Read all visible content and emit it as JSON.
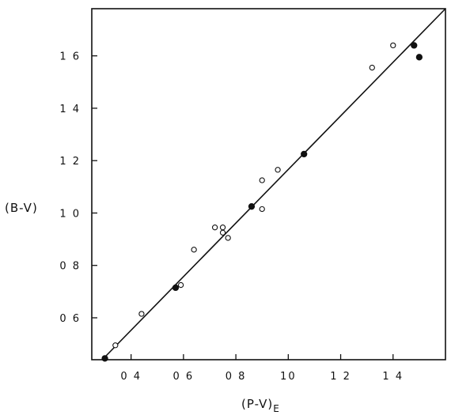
{
  "chart_data": {
    "type": "scatter",
    "xlabel": "(P-V)",
    "xlabel_subscript": "E",
    "ylabel": "(B-V)",
    "xlim": [
      0.25,
      1.6
    ],
    "ylim": [
      0.44,
      1.78
    ],
    "x_ticks": [
      {
        "value": 0.4,
        "label": "0 4"
      },
      {
        "value": 0.6,
        "label": "0 6"
      },
      {
        "value": 0.8,
        "label": "0 8"
      },
      {
        "value": 1.0,
        "label": "10"
      },
      {
        "value": 1.2,
        "label": "1 2"
      },
      {
        "value": 1.4,
        "label": "1 4"
      }
    ],
    "y_ticks": [
      {
        "value": 0.6,
        "label": "0 6"
      },
      {
        "value": 0.8,
        "label": "0 8"
      },
      {
        "value": 1.0,
        "label": "1 0"
      },
      {
        "value": 1.2,
        "label": "1 2"
      },
      {
        "value": 1.4,
        "label": "1 4"
      },
      {
        "value": 1.6,
        "label": "1 6"
      }
    ],
    "grid": false,
    "legend": "none",
    "series": [
      {
        "marker": "open-circle",
        "points": [
          {
            "x": 0.34,
            "y": 0.495
          },
          {
            "x": 0.44,
            "y": 0.615
          },
          {
            "x": 0.59,
            "y": 0.725
          },
          {
            "x": 0.64,
            "y": 0.86
          },
          {
            "x": 0.72,
            "y": 0.945
          },
          {
            "x": 0.75,
            "y": 0.945
          },
          {
            "x": 0.75,
            "y": 0.925
          },
          {
            "x": 0.77,
            "y": 0.905
          },
          {
            "x": 0.9,
            "y": 1.015
          },
          {
            "x": 0.9,
            "y": 1.125
          },
          {
            "x": 0.96,
            "y": 1.165
          },
          {
            "x": 1.32,
            "y": 1.555
          },
          {
            "x": 1.4,
            "y": 1.64
          }
        ]
      },
      {
        "marker": "filled-circle",
        "points": [
          {
            "x": 0.3,
            "y": 0.445
          },
          {
            "x": 0.57,
            "y": 0.715
          },
          {
            "x": 0.86,
            "y": 1.025
          },
          {
            "x": 1.06,
            "y": 1.225
          },
          {
            "x": 1.48,
            "y": 1.64
          },
          {
            "x": 1.5,
            "y": 1.595
          }
        ]
      }
    ],
    "fit_line": {
      "x": [
        0.29,
        1.6
      ],
      "y": [
        0.44,
        1.78
      ]
    }
  }
}
